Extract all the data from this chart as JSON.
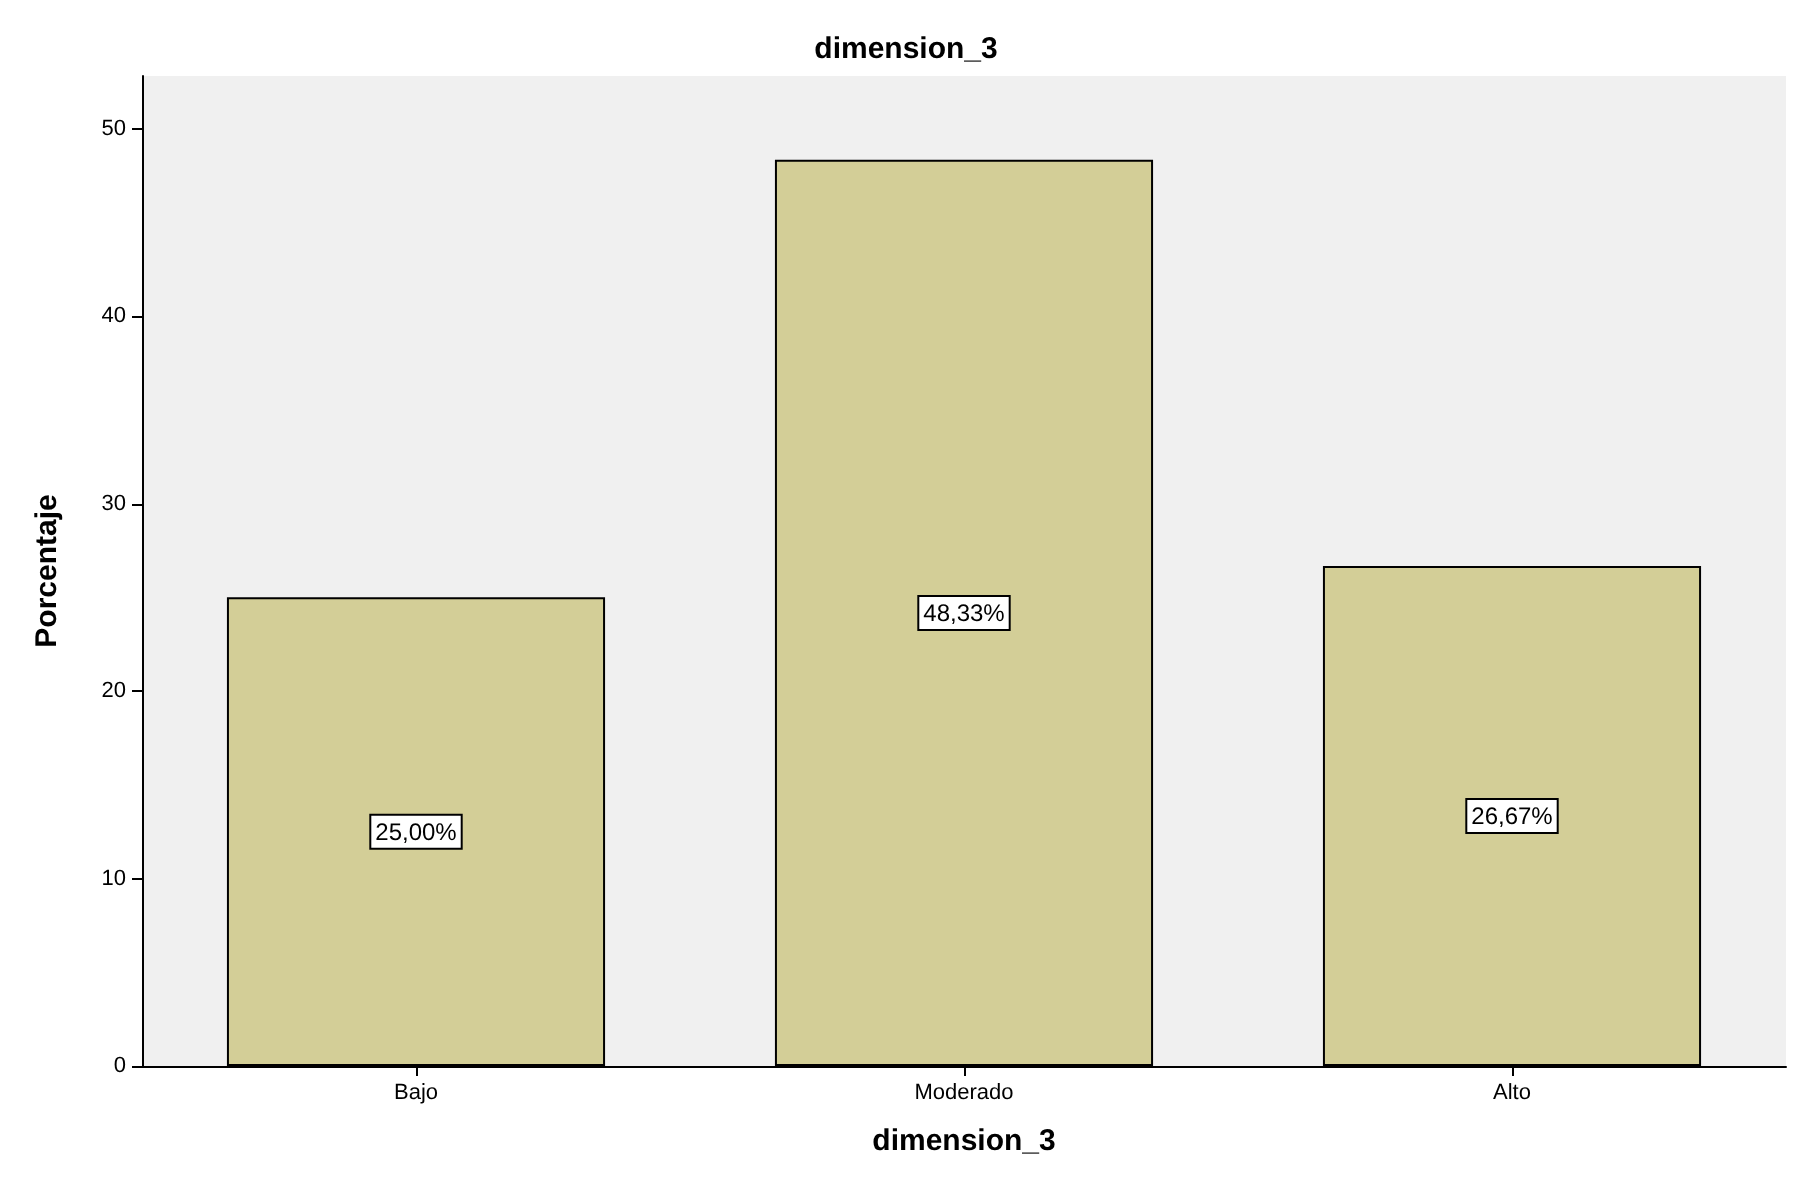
{
  "chart_data": {
    "type": "bar",
    "title": "dimension_3",
    "xlabel": "dimension_3",
    "ylabel": "Porcentaje",
    "categories": [
      "Bajo",
      "Moderado",
      "Alto"
    ],
    "values": [
      25.0,
      48.33,
      26.67
    ],
    "value_labels": [
      "25,00%",
      "48,33%",
      "26,67%"
    ],
    "color": "#d3ce97",
    "ylim": [
      0,
      52.8
    ],
    "yticks": [
      0,
      10,
      20,
      30,
      40,
      50
    ],
    "grid": false
  }
}
